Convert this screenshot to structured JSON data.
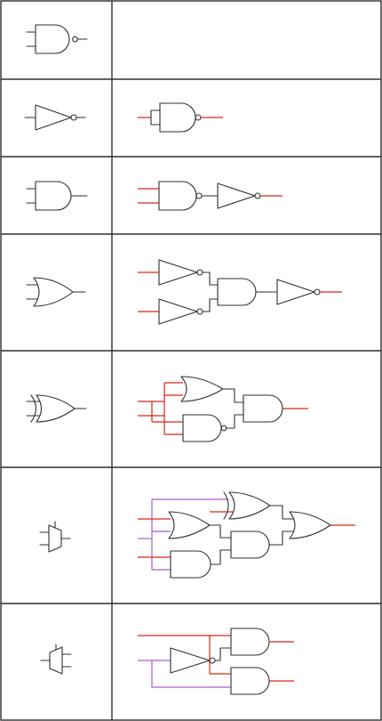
{
  "table": {
    "rows": [
      {
        "gate": "nand-gate-icon",
        "construction": "empty"
      },
      {
        "gate": "not-gate-icon",
        "construction": "nand-as-not"
      },
      {
        "gate": "and-gate-icon",
        "construction": "nand-then-not"
      },
      {
        "gate": "or-gate-icon",
        "construction": "two-nots-into-nand-then-not"
      },
      {
        "gate": "xor-gate-icon",
        "construction": "or-and-nand-into-and"
      },
      {
        "gate": "multiplexer-icon",
        "construction": "mux-circuit"
      },
      {
        "gate": "demultiplexer-icon",
        "construction": "demux-circuit"
      }
    ]
  },
  "colors": {
    "line": "#2f2f2f",
    "input": "#d9261c",
    "select": "#a25ec9",
    "background": "#ffffff"
  }
}
